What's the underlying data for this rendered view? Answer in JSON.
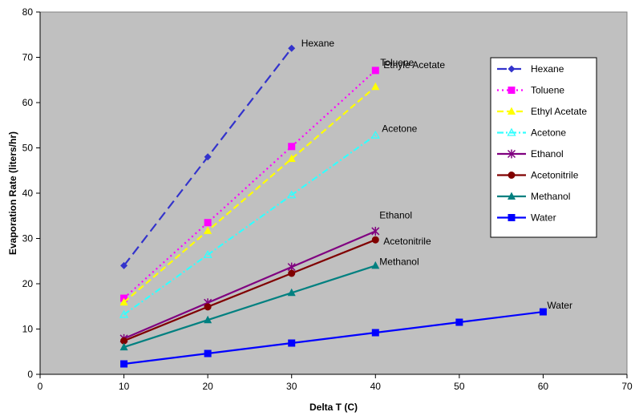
{
  "chart_data": {
    "type": "line",
    "xlabel": "Delta T (C)",
    "ylabel": "Evaporation Rate (liters/hr)",
    "xlim": [
      0,
      70
    ],
    "ylim": [
      0,
      80
    ],
    "x_ticks": [
      0,
      10,
      20,
      30,
      40,
      50,
      60,
      70
    ],
    "y_ticks": [
      0,
      10,
      20,
      30,
      40,
      50,
      60,
      70,
      80
    ],
    "grid": false,
    "plot_background": "#c0c0c0",
    "legend_position": "right",
    "series": [
      {
        "name": "Hexane",
        "color": "#3333cc",
        "dash": "long-dash",
        "marker": "diamond",
        "label": "Hexane",
        "points": [
          [
            10,
            24
          ],
          [
            20,
            48
          ],
          [
            30,
            72
          ]
        ]
      },
      {
        "name": "Toluene",
        "color": "#ff00ff",
        "dash": "dot",
        "marker": "square",
        "label": "Toluene",
        "points": [
          [
            10,
            16.8
          ],
          [
            20,
            33.5
          ],
          [
            30,
            50.3
          ],
          [
            40,
            67.1
          ]
        ]
      },
      {
        "name": "Ethyl Acetate",
        "color": "#ffff00",
        "dash": "dash",
        "marker": "triangle",
        "label": "Ethyle Acetate",
        "points": [
          [
            10,
            15.9
          ],
          [
            20,
            31.7
          ],
          [
            30,
            47.6
          ],
          [
            40,
            63.5
          ]
        ]
      },
      {
        "name": "Acetone",
        "color": "#33ffff",
        "dash": "dash-dot",
        "marker": "triangle-open",
        "label": "Acetone",
        "points": [
          [
            10,
            13.2
          ],
          [
            20,
            26.4
          ],
          [
            30,
            39.6
          ],
          [
            40,
            52.8
          ]
        ]
      },
      {
        "name": "Ethanol",
        "color": "#800080",
        "dash": "solid",
        "marker": "star",
        "label": "Ethanol",
        "points": [
          [
            10,
            7.9
          ],
          [
            20,
            15.8
          ],
          [
            30,
            23.7
          ],
          [
            40,
            31.6
          ]
        ]
      },
      {
        "name": "Acetonitrile",
        "color": "#800000",
        "dash": "solid",
        "marker": "circle",
        "label": "Acetonitrile",
        "points": [
          [
            10,
            7.4
          ],
          [
            20,
            14.9
          ],
          [
            30,
            22.3
          ],
          [
            40,
            29.7
          ]
        ]
      },
      {
        "name": "Methanol",
        "color": "#008080",
        "dash": "solid",
        "marker": "triangle",
        "label": "Methanol",
        "points": [
          [
            10,
            6
          ],
          [
            20,
            12
          ],
          [
            30,
            18
          ],
          [
            40,
            24
          ]
        ]
      },
      {
        "name": "Water",
        "color": "#0000ff",
        "dash": "solid",
        "marker": "square",
        "label": "Water",
        "points": [
          [
            10,
            2.3
          ],
          [
            20,
            4.6
          ],
          [
            30,
            6.9
          ],
          [
            40,
            9.2
          ],
          [
            50,
            11.5
          ],
          [
            60,
            13.8
          ]
        ]
      }
    ]
  }
}
